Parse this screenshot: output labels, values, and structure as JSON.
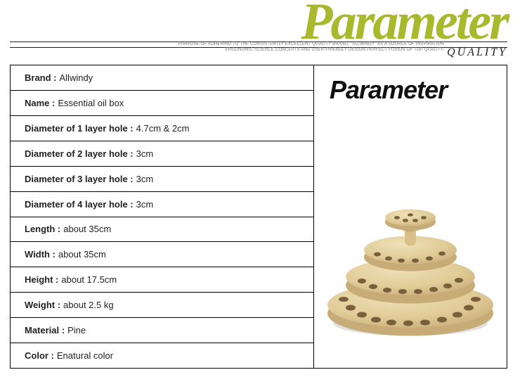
{
  "header": {
    "big_title": "Parameter",
    "title_color": "#a8b92e",
    "caption_line1": "PURPOSE OF ADHERING TO THE CONSISTENTLY EXCELLENT QUALITY BRAND, \"ALLWINDY\" AS A SOURCE OF INSPIRATION",
    "caption_line2": "ERGONOMIC SCIENCE CONCEPTS AND USER-FRIENDLY DESIGN PERFECT FUSION OF TOP QUALITY.",
    "quality_label": "QUALITY"
  },
  "specs": [
    {
      "label": "Brand :",
      "value": "Allwindy"
    },
    {
      "label": "Name :",
      "value": "Essential oil box"
    },
    {
      "label": "Diameter of 1 layer hole :",
      "value": "4.7cm & 2cm"
    },
    {
      "label": "Diameter of 2 layer hole :",
      "value": "3cm"
    },
    {
      "label": "Diameter of 3 layer hole :",
      "value": "3cm"
    },
    {
      "label": "Diameter of 4 layer hole :",
      "value": "3cm"
    },
    {
      "label": "Length :",
      "value": "about 35cm"
    },
    {
      "label": "Width :",
      "value": "about 35cm"
    },
    {
      "label": "Height :",
      "value": "about 17.5cm"
    },
    {
      "label": "Weight :",
      "value": "about 2.5 kg"
    },
    {
      "label": "Material :",
      "value": "Pine"
    },
    {
      "label": "Color :",
      "value": "Enatural color"
    }
  ],
  "panel": {
    "title": "Parameter",
    "wood_light": "#e8d4a8",
    "wood_mid": "#d9c08a",
    "wood_dark": "#b89968",
    "hole_color": "#7a5f3a"
  }
}
